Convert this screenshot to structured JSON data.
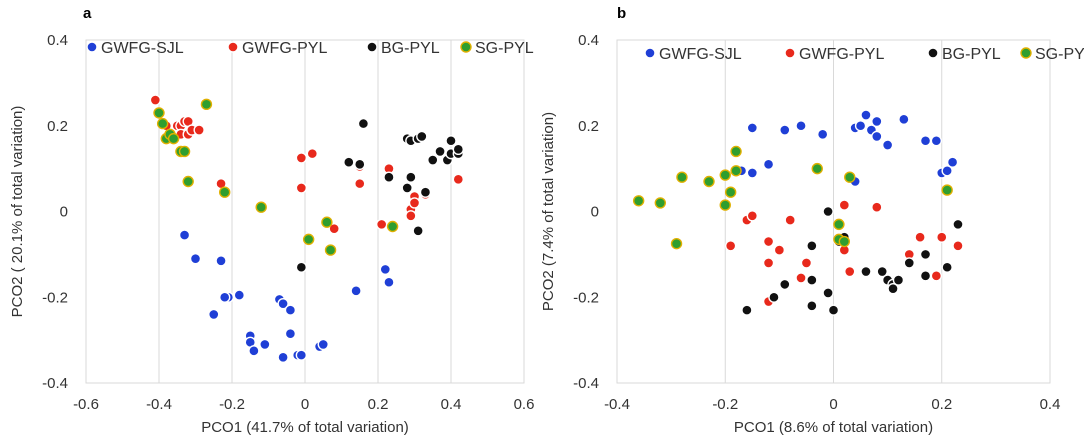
{
  "chart_data": [
    {
      "panel": "a",
      "type": "scatter",
      "title": "",
      "xlabel": "PCO1 (41.7% of total variation)",
      "ylabel": "PCO2 ( 20.1% of total variation)",
      "xlim": [
        -0.6,
        0.6
      ],
      "ylim": [
        -0.4,
        0.4
      ],
      "xticks": [
        "-0.6",
        "-0.4",
        "-0.2",
        "0",
        "0.2",
        "0.4",
        "0.6"
      ],
      "yticks": [
        "0.4",
        "0.2",
        "0",
        "-0.2",
        "-0.4"
      ],
      "grid": "vertical",
      "legend_position": "top",
      "series": [
        {
          "name": "GWFG-SJL",
          "fill": "#1f3fd6",
          "points": [
            [
              -0.33,
              -0.055
            ],
            [
              -0.3,
              -0.11
            ],
            [
              -0.23,
              -0.115
            ],
            [
              -0.21,
              -0.2
            ],
            [
              -0.22,
              -0.2
            ],
            [
              -0.25,
              -0.24
            ],
            [
              -0.18,
              -0.195
            ],
            [
              -0.15,
              -0.29
            ],
            [
              -0.15,
              -0.305
            ],
            [
              -0.14,
              -0.325
            ],
            [
              -0.11,
              -0.31
            ],
            [
              -0.07,
              -0.205
            ],
            [
              -0.06,
              -0.215
            ],
            [
              -0.06,
              -0.34
            ],
            [
              -0.04,
              -0.285
            ],
            [
              -0.04,
              -0.23
            ],
            [
              -0.02,
              -0.335
            ],
            [
              -0.01,
              -0.335
            ],
            [
              0.04,
              -0.315
            ],
            [
              0.05,
              -0.31
            ],
            [
              0.14,
              -0.185
            ],
            [
              0.22,
              -0.135
            ],
            [
              0.23,
              -0.165
            ]
          ]
        },
        {
          "name": "GWFG-PYL",
          "fill": "#e8291c",
          "points": [
            [
              -0.41,
              0.26
            ],
            [
              -0.38,
              0.2
            ],
            [
              -0.35,
              0.2
            ],
            [
              -0.34,
              0.2
            ],
            [
              -0.33,
              0.21
            ],
            [
              -0.32,
              0.21
            ],
            [
              -0.34,
              0.18
            ],
            [
              -0.32,
              0.18
            ],
            [
              -0.31,
              0.19
            ],
            [
              -0.29,
              0.19
            ],
            [
              -0.23,
              0.065
            ],
            [
              -0.01,
              0.125
            ],
            [
              0.02,
              0.135
            ],
            [
              -0.01,
              0.055
            ],
            [
              0.08,
              -0.04
            ],
            [
              0.15,
              0.065
            ],
            [
              0.15,
              0.105
            ],
            [
              0.21,
              -0.03
            ],
            [
              0.23,
              0.1
            ],
            [
              0.29,
              0.005
            ],
            [
              0.29,
              -0.01
            ],
            [
              0.3,
              0.035
            ],
            [
              0.3,
              0.02
            ],
            [
              0.33,
              0.04
            ],
            [
              0.42,
              0.075
            ]
          ]
        },
        {
          "name": "BG-PYL",
          "fill": "#111111",
          "points": [
            [
              -0.12,
              0.01
            ],
            [
              -0.01,
              -0.13
            ],
            [
              0.12,
              0.115
            ],
            [
              0.16,
              0.205
            ],
            [
              0.15,
              0.11
            ],
            [
              0.23,
              0.08
            ],
            [
              0.28,
              0.17
            ],
            [
              0.29,
              0.08
            ],
            [
              0.28,
              0.055
            ],
            [
              0.29,
              0.165
            ],
            [
              0.31,
              0.17
            ],
            [
              0.32,
              0.175
            ],
            [
              0.33,
              0.045
            ],
            [
              0.31,
              -0.045
            ],
            [
              0.35,
              0.12
            ],
            [
              0.37,
              0.14
            ],
            [
              0.39,
              0.12
            ],
            [
              0.4,
              0.135
            ],
            [
              0.42,
              0.135
            ],
            [
              0.42,
              0.145
            ],
            [
              0.4,
              0.165
            ]
          ]
        },
        {
          "name": "SG-PYL",
          "fill": "#2f9e2f",
          "points": [
            [
              -0.4,
              0.23
            ],
            [
              -0.39,
              0.205
            ],
            [
              -0.38,
              0.17
            ],
            [
              -0.37,
              0.18
            ],
            [
              -0.36,
              0.17
            ],
            [
              -0.34,
              0.14
            ],
            [
              -0.33,
              0.14
            ],
            [
              -0.32,
              0.07
            ],
            [
              -0.27,
              0.25
            ],
            [
              -0.22,
              0.045
            ],
            [
              -0.12,
              0.01
            ],
            [
              0.01,
              -0.065
            ],
            [
              0.06,
              -0.025
            ],
            [
              0.07,
              -0.09
            ],
            [
              0.24,
              -0.035
            ]
          ]
        }
      ]
    },
    {
      "panel": "b",
      "type": "scatter",
      "title": "",
      "xlabel": "PCO1 (8.6% of total variation)",
      "ylabel": "PCO2 (7.4% of total variation)",
      "xlim": [
        -0.4,
        0.4
      ],
      "ylim": [
        -0.4,
        0.4
      ],
      "xticks": [
        "-0.4",
        "-0.2",
        "0",
        "0.2",
        "0.4"
      ],
      "yticks": [
        "0.4",
        "0.2",
        "0",
        "-0.2",
        "-0.4"
      ],
      "grid": "vertical",
      "legend_position": "top",
      "series": [
        {
          "name": "GWFG-SJL",
          "fill": "#1f3fd6",
          "points": [
            [
              -0.17,
              0.095
            ],
            [
              -0.15,
              0.09
            ],
            [
              -0.15,
              0.195
            ],
            [
              -0.12,
              0.11
            ],
            [
              -0.09,
              0.19
            ],
            [
              -0.06,
              0.2
            ],
            [
              -0.02,
              0.18
            ],
            [
              0.04,
              0.07
            ],
            [
              0.04,
              0.195
            ],
            [
              0.05,
              0.2
            ],
            [
              0.06,
              0.225
            ],
            [
              0.07,
              0.19
            ],
            [
              0.08,
              0.21
            ],
            [
              0.08,
              0.175
            ],
            [
              0.1,
              0.155
            ],
            [
              0.13,
              0.215
            ],
            [
              0.17,
              0.165
            ],
            [
              0.19,
              0.165
            ],
            [
              0.2,
              0.09
            ],
            [
              0.21,
              0.095
            ],
            [
              0.22,
              0.115
            ]
          ]
        },
        {
          "name": "GWFG-PYL",
          "fill": "#e8291c",
          "points": [
            [
              -0.19,
              -0.08
            ],
            [
              -0.16,
              -0.02
            ],
            [
              -0.15,
              -0.01
            ],
            [
              -0.12,
              -0.07
            ],
            [
              -0.12,
              -0.12
            ],
            [
              -0.12,
              -0.21
            ],
            [
              -0.1,
              -0.09
            ],
            [
              -0.08,
              -0.02
            ],
            [
              -0.06,
              -0.155
            ],
            [
              -0.05,
              -0.12
            ],
            [
              0.02,
              0.015
            ],
            [
              0.02,
              -0.09
            ],
            [
              0.03,
              -0.14
            ],
            [
              0.08,
              0.01
            ],
            [
              0.14,
              -0.1
            ],
            [
              0.16,
              -0.06
            ],
            [
              0.19,
              -0.15
            ],
            [
              0.2,
              -0.06
            ],
            [
              0.23,
              -0.08
            ]
          ]
        },
        {
          "name": "BG-PYL",
          "fill": "#111111",
          "points": [
            [
              -0.16,
              -0.23
            ],
            [
              -0.11,
              -0.2
            ],
            [
              -0.09,
              -0.17
            ],
            [
              -0.04,
              -0.16
            ],
            [
              -0.04,
              -0.08
            ],
            [
              -0.04,
              -0.22
            ],
            [
              -0.01,
              0.0
            ],
            [
              -0.01,
              -0.19
            ],
            [
              0.0,
              -0.23
            ],
            [
              0.01,
              -0.07
            ],
            [
              0.02,
              -0.06
            ],
            [
              0.06,
              -0.14
            ],
            [
              0.09,
              -0.14
            ],
            [
              0.1,
              -0.16
            ],
            [
              0.11,
              -0.17
            ],
            [
              0.11,
              -0.18
            ],
            [
              0.12,
              -0.16
            ],
            [
              0.14,
              -0.12
            ],
            [
              0.17,
              -0.15
            ],
            [
              0.17,
              -0.1
            ],
            [
              0.21,
              -0.13
            ],
            [
              0.23,
              -0.03
            ]
          ]
        },
        {
          "name": "SG-PYL",
          "fill": "#2f9e2f",
          "points": [
            [
              -0.36,
              0.025
            ],
            [
              -0.32,
              0.02
            ],
            [
              -0.29,
              -0.075
            ],
            [
              -0.28,
              0.08
            ],
            [
              -0.23,
              0.07
            ],
            [
              -0.2,
              0.015
            ],
            [
              -0.2,
              0.085
            ],
            [
              -0.19,
              0.045
            ],
            [
              -0.18,
              0.14
            ],
            [
              -0.18,
              0.095
            ],
            [
              -0.03,
              0.1
            ],
            [
              0.01,
              -0.03
            ],
            [
              0.01,
              -0.065
            ],
            [
              0.02,
              -0.07
            ],
            [
              0.03,
              0.08
            ],
            [
              0.21,
              0.05
            ]
          ]
        }
      ]
    }
  ]
}
